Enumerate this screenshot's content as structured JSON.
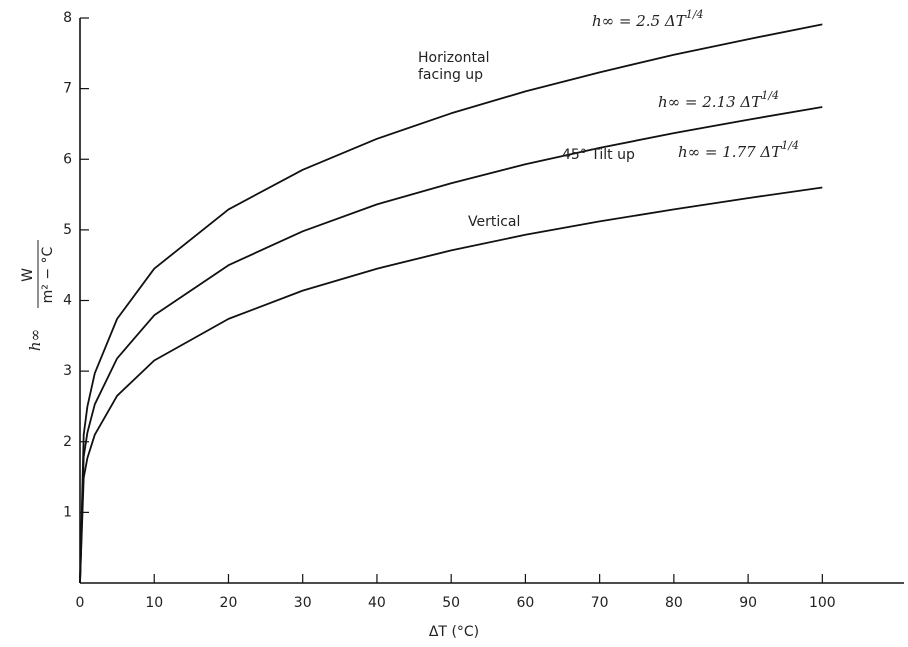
{
  "chart_data": {
    "type": "line",
    "x": [
      0,
      0.5,
      1,
      2,
      5,
      10,
      20,
      30,
      40,
      50,
      60,
      70,
      80,
      90,
      100
    ],
    "series": [
      {
        "name": "Horizontal facing up",
        "color": "#111111",
        "values": [
          0,
          2.1,
          2.5,
          2.97,
          3.74,
          4.45,
          5.29,
          5.85,
          6.29,
          6.65,
          6.96,
          7.23,
          7.48,
          7.7,
          7.91
        ]
      },
      {
        "name": "45° Tilt up",
        "color": "#111111",
        "values": [
          0,
          1.79,
          2.13,
          2.53,
          3.18,
          3.79,
          4.5,
          4.98,
          5.36,
          5.66,
          5.93,
          6.16,
          6.37,
          6.56,
          6.74
        ]
      },
      {
        "name": "Vertical",
        "color": "#111111",
        "values": [
          0,
          1.49,
          1.77,
          2.1,
          2.65,
          3.15,
          3.74,
          4.14,
          4.45,
          4.71,
          4.93,
          5.12,
          5.29,
          5.45,
          5.6
        ]
      }
    ],
    "equations": [
      {
        "text": "h∞ = 2.5 ΔT",
        "sup": "1/4"
      },
      {
        "text": "h∞ = 2.13 ΔT",
        "sup": "1/4"
      },
      {
        "text": "h∞ = 1.77 ΔT",
        "sup": "1/4"
      }
    ],
    "x_label": "ΔT (°C)",
    "y_label": {
      "symbol": "h∞",
      "numerator": "W",
      "denominator": "m² − °C"
    },
    "xlim": [
      0,
      111
    ],
    "ylim": [
      0,
      8
    ],
    "xticks": [
      0,
      10,
      20,
      30,
      40,
      50,
      60,
      70,
      80,
      90,
      100
    ],
    "yticks": [
      1,
      2,
      3,
      4,
      5,
      6,
      7,
      8
    ]
  }
}
